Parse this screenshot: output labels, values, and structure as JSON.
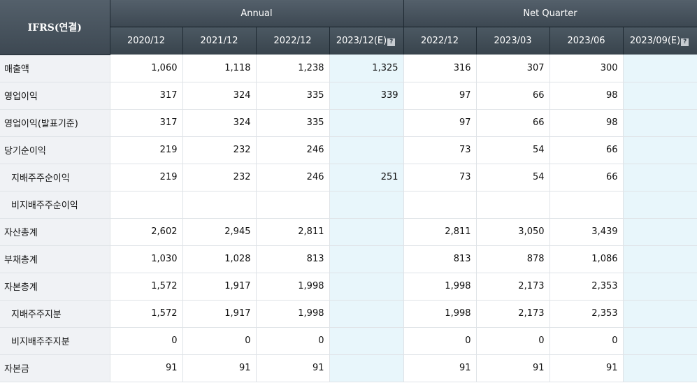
{
  "header": {
    "corner_label": "IFRS(연결)",
    "annual_label": "Annual",
    "quarter_label": "Net Quarter",
    "periods": [
      "2020/12",
      "2021/12",
      "2022/12",
      "2023/12(E)",
      "2022/12",
      "2023/03",
      "2023/06",
      "2023/09(E)"
    ],
    "estimate_icon": "?"
  },
  "rows": [
    {
      "label": "매출액",
      "values": [
        "1,060",
        "1,118",
        "1,238",
        "1,325",
        "316",
        "307",
        "300",
        ""
      ]
    },
    {
      "label": "영업이익",
      "values": [
        "317",
        "324",
        "335",
        "339",
        "97",
        "66",
        "98",
        ""
      ]
    },
    {
      "label": "영업이익(발표기준)",
      "values": [
        "317",
        "324",
        "335",
        "",
        "97",
        "66",
        "98",
        ""
      ]
    },
    {
      "label": "당기순이익",
      "values": [
        "219",
        "232",
        "246",
        "",
        "73",
        "54",
        "66",
        ""
      ]
    },
    {
      "label": "지배주주순이익",
      "values": [
        "219",
        "232",
        "246",
        "251",
        "73",
        "54",
        "66",
        ""
      ]
    },
    {
      "label": "비지배주주순이익",
      "values": [
        "",
        "",
        "",
        "",
        "",
        "",
        "",
        ""
      ]
    },
    {
      "label": "자산총계",
      "values": [
        "2,602",
        "2,945",
        "2,811",
        "",
        "2,811",
        "3,050",
        "3,439",
        ""
      ]
    },
    {
      "label": "부채총계",
      "values": [
        "1,030",
        "1,028",
        "813",
        "",
        "813",
        "878",
        "1,086",
        ""
      ]
    },
    {
      "label": "자본총계",
      "values": [
        "1,572",
        "1,917",
        "1,998",
        "",
        "1,998",
        "2,173",
        "2,353",
        ""
      ]
    },
    {
      "label": "지배주주지분",
      "values": [
        "1,572",
        "1,917",
        "1,998",
        "",
        "1,998",
        "2,173",
        "2,353",
        ""
      ]
    },
    {
      "label": "비지배주주지분",
      "values": [
        "0",
        "0",
        "0",
        "",
        "0",
        "0",
        "0",
        ""
      ]
    },
    {
      "label": "자본금",
      "values": [
        "91",
        "91",
        "91",
        "",
        "91",
        "91",
        "91",
        ""
      ]
    }
  ],
  "colors": {
    "header_bg": "#46525c",
    "label_bg": "#f0f2f5",
    "estimate_bg": "#e8f6fb",
    "grid": "#dfe3e7"
  }
}
